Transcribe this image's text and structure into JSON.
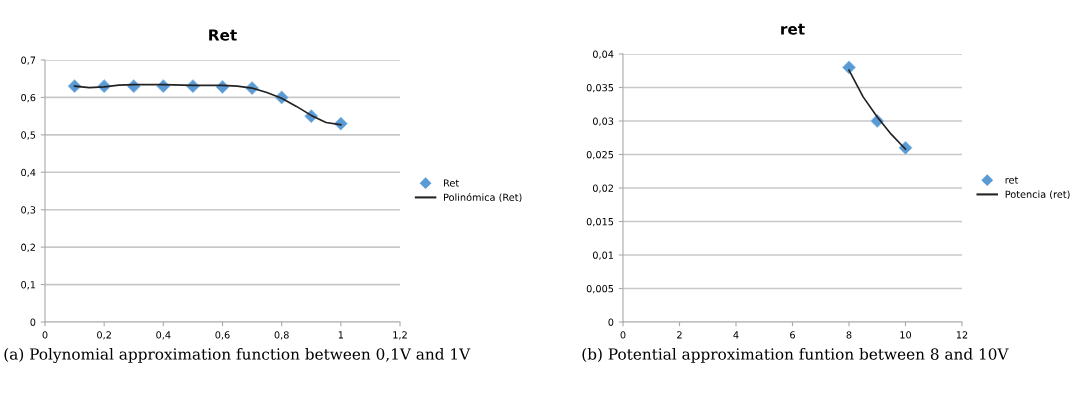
{
  "chart_data": [
    {
      "type": "scatter",
      "title": "Ret",
      "legend": "right",
      "grid": "y",
      "xlim": [
        0,
        1.2
      ],
      "ylim": [
        0,
        0.7
      ],
      "xticks": [
        0,
        {
          "value": 0.2,
          "label": "0,2"
        },
        {
          "value": 0.4,
          "label": "0,4"
        },
        {
          "value": 0.6,
          "label": "0,6"
        },
        {
          "value": 0.8,
          "label": "0,8"
        },
        1,
        {
          "value": 1.2,
          "label": "1,2"
        }
      ],
      "yticks": [
        0,
        {
          "value": 0.1,
          "label": "0,1"
        },
        {
          "value": 0.2,
          "label": "0,2"
        },
        {
          "value": 0.3,
          "label": "0,3"
        },
        {
          "value": 0.4,
          "label": "0,4"
        },
        {
          "value": 0.5,
          "label": "0,5"
        },
        {
          "value": 0.6,
          "label": "0,6"
        },
        {
          "value": 0.7,
          "label": "0,7"
        }
      ],
      "series": [
        {
          "name": "Ret",
          "marker": "diamond",
          "color": "#5b9bd5",
          "x": [
            0.1,
            0.2,
            0.3,
            0.4,
            0.5,
            0.6,
            0.7,
            0.8,
            0.9,
            1.0
          ],
          "values": [
            0.63,
            0.63,
            0.63,
            0.63,
            0.63,
            0.628,
            0.625,
            0.6,
            0.55,
            0.53
          ]
        },
        {
          "name": "Polinómica (Ret)",
          "type": "line",
          "marker": "none",
          "color": "#222222",
          "x": [
            0.1,
            0.15,
            0.2,
            0.25,
            0.3,
            0.4,
            0.5,
            0.6,
            0.65,
            0.7,
            0.75,
            0.8,
            0.85,
            0.9,
            0.95,
            1.0
          ],
          "values": [
            0.63,
            0.626,
            0.628,
            0.633,
            0.634,
            0.634,
            0.632,
            0.632,
            0.63,
            0.625,
            0.613,
            0.598,
            0.576,
            0.552,
            0.533,
            0.527
          ]
        }
      ],
      "annotations": [
        "(a) Polynomial approximation function between 0,1V and 1V"
      ]
    },
    {
      "type": "scatter",
      "title": "ret",
      "legend": "right",
      "grid": "y",
      "xlim": [
        0,
        12
      ],
      "ylim": [
        0,
        0.04
      ],
      "xticks": [
        0,
        2,
        4,
        6,
        8,
        10,
        12
      ],
      "yticks": [
        0,
        {
          "value": 0.005,
          "label": "0,005"
        },
        {
          "value": 0.01,
          "label": "0,01"
        },
        {
          "value": 0.015,
          "label": "0,015"
        },
        {
          "value": 0.02,
          "label": "0,02"
        },
        {
          "value": 0.025,
          "label": "0,025"
        },
        {
          "value": 0.03,
          "label": "0,03"
        },
        {
          "value": 0.035,
          "label": "0,035"
        },
        {
          "value": 0.04,
          "label": "0,04"
        }
      ],
      "series": [
        {
          "name": "ret",
          "marker": "diamond",
          "color": "#5b9bd5",
          "x": [
            8,
            9,
            10
          ],
          "values": [
            0.038,
            0.03,
            0.026
          ]
        },
        {
          "name": "Potencia (ret)",
          "type": "line",
          "marker": "none",
          "color": "#222222",
          "x": [
            8,
            8.5,
            9,
            9.5,
            10
          ],
          "values": [
            0.0376,
            0.0336,
            0.0306,
            0.028,
            0.0258
          ]
        }
      ],
      "annotations": [
        "(b) Potential approximation funtion between 8 and 10V"
      ]
    }
  ]
}
